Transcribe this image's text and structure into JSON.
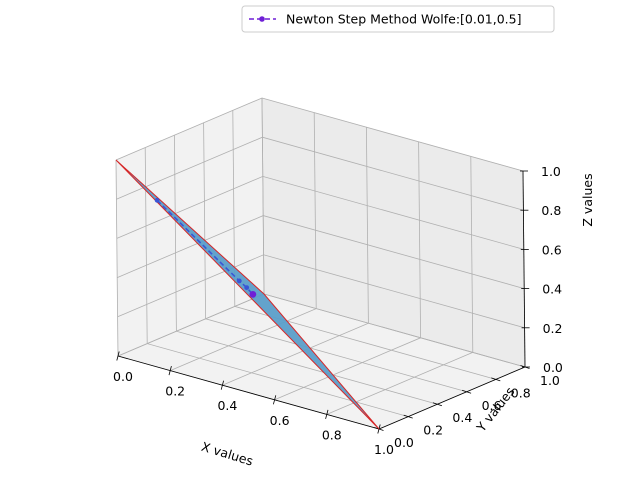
{
  "chart_data": {
    "type": "line3d",
    "legend": {
      "label": "Newton Step Method Wolfe:[0.01,0.5]",
      "placement": "upper-right"
    },
    "xlabel": "X values",
    "ylabel": "Y values",
    "zlabel": "Z values",
    "xlim": [
      0,
      1
    ],
    "ylim": [
      0,
      1
    ],
    "zlim": [
      0,
      1
    ],
    "xticks": [
      "0.0",
      "0.2",
      "0.4",
      "0.6",
      "0.8",
      "1.0"
    ],
    "yticks": [
      "0.0",
      "0.2",
      "0.4",
      "0.6",
      "0.8",
      "1.0"
    ],
    "zticks": [
      "0.0",
      "0.2",
      "0.4",
      "0.6",
      "0.8",
      "1.0"
    ],
    "grid": true,
    "surface": {
      "vertices": [
        {
          "x": 0,
          "y": 0,
          "z": 1
        },
        {
          "x": 1,
          "y": 0,
          "z": 0
        },
        {
          "x": 0,
          "y": 1,
          "z": 0
        }
      ],
      "face_color": "#5b9ec9",
      "edge_color": "#d62728"
    },
    "series": [
      {
        "name": "Newton Step Method Wolfe:[0.01,0.5]",
        "color": "#6f1fd6",
        "linestyle": "dashed",
        "marker": "o",
        "points": [
          {
            "x": 0.1,
            "y": 0.1,
            "z": 0.8
          },
          {
            "x": 0.3,
            "y": 0.3,
            "z": 0.4
          },
          {
            "x": 0.3,
            "y": 0.35,
            "z": 0.35
          },
          {
            "x": 0.333,
            "y": 0.333,
            "z": 0.333
          }
        ]
      }
    ]
  }
}
